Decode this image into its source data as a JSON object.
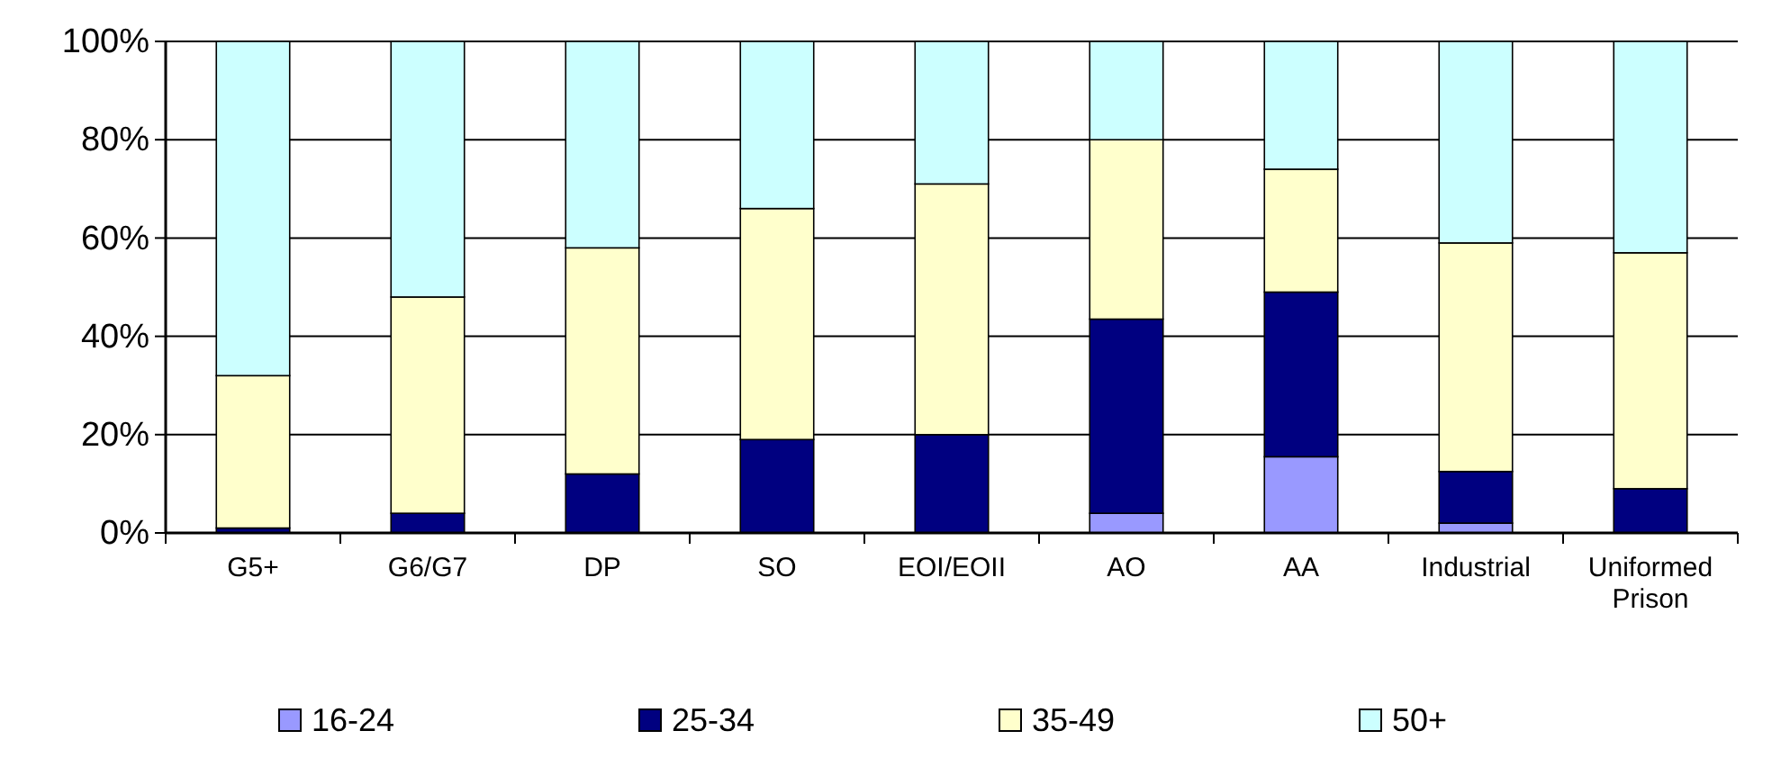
{
  "chart_data": {
    "type": "bar",
    "stacked": true,
    "categories": [
      "G5+",
      "G6/G7",
      "DP",
      "SO",
      "EOI/EOII",
      "AO",
      "AA",
      "Industrial",
      "Uniformed Prison"
    ],
    "series": [
      {
        "name": "16-24",
        "color": "#9999ff",
        "values": [
          0,
          0,
          0,
          0,
          null,
          4,
          15.5,
          2,
          null
        ]
      },
      {
        "name": "25-34",
        "color": "#000080",
        "values": [
          1,
          4,
          12,
          19,
          20,
          39.5,
          33.5,
          10.5,
          9
        ]
      },
      {
        "name": "35-49",
        "color": "#ffffcc",
        "values": [
          31,
          44,
          46,
          47,
          51,
          36.5,
          25,
          46.5,
          48
        ]
      },
      {
        "name": "50+",
        "color": "#ccffff",
        "values": [
          68,
          52,
          42,
          34,
          29,
          20,
          26,
          41,
          43
        ]
      }
    ],
    "ylim": [
      0,
      100
    ],
    "yticks": [
      {
        "value": 0,
        "label": "0%"
      },
      {
        "value": 20,
        "label": "20%"
      },
      {
        "value": 40,
        "label": "40%"
      },
      {
        "value": 60,
        "label": "60%"
      },
      {
        "value": 80,
        "label": "80%"
      },
      {
        "value": 100,
        "label": "100%"
      }
    ],
    "grid": "y",
    "legend": "bottom"
  }
}
